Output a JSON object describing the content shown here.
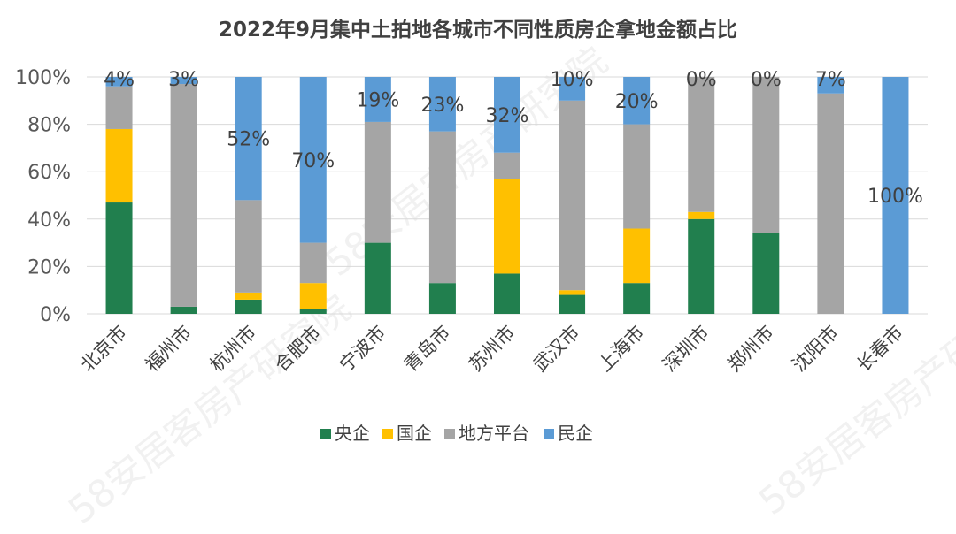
{
  "colors": {
    "central_soe": "#217f4e",
    "state_owned": "#ffc000",
    "local_platform": "#a5a5a5",
    "private": "#5b9bd5"
  },
  "chart_data": {
    "type": "bar",
    "stacked": true,
    "title": "2022年9月集中土拍地各城市不同性质房企拿地金额占比",
    "xlabel": "",
    "ylabel": "",
    "ylim": [
      0,
      100
    ],
    "yticks": [
      "0%",
      "20%",
      "40%",
      "60%",
      "80%",
      "100%"
    ],
    "grid": true,
    "legend_position": "bottom",
    "categories": [
      "北京市",
      "福州市",
      "杭州市",
      "合肥市",
      "宁波市",
      "青岛市",
      "苏州市",
      "武汉市",
      "上海市",
      "深圳市",
      "郑州市",
      "沈阳市",
      "长春市"
    ],
    "series": [
      {
        "name": "央企",
        "color": "#217f4e",
        "values": [
          47,
          3,
          6,
          2,
          30,
          13,
          17,
          8,
          13,
          40,
          34,
          0,
          0
        ]
      },
      {
        "name": "国企",
        "color": "#ffc000",
        "values": [
          31,
          0,
          3,
          11,
          0,
          0,
          40,
          2,
          23,
          3,
          0,
          0,
          0
        ]
      },
      {
        "name": "地方平台",
        "color": "#a5a5a5",
        "values": [
          18,
          94,
          39,
          17,
          51,
          64,
          11,
          80,
          44,
          57,
          66,
          93,
          0
        ]
      },
      {
        "name": "民企",
        "color": "#5b9bd5",
        "values": [
          4,
          3,
          52,
          70,
          19,
          23,
          32,
          10,
          20,
          0,
          0,
          7,
          100
        ]
      }
    ],
    "data_labels": [
      "4%",
      "3%",
      "52%",
      "70%",
      "19%",
      "23%",
      "32%",
      "10%",
      "20%",
      "0%",
      "0%",
      "7%",
      "100%"
    ],
    "watermark": "58安居客房产研究院"
  }
}
